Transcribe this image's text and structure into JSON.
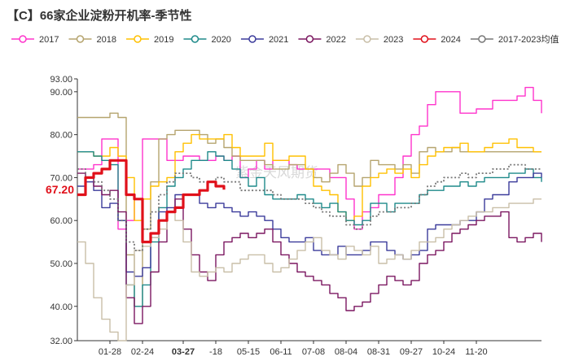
{
  "chart_data": {
    "type": "line",
    "title": "【C】66家企业淀粉开机率-季节性",
    "watermark": "紫金天风期货",
    "ylim": [
      32,
      93
    ],
    "y_ticks": [
      32.0,
      40.0,
      50.0,
      60.0,
      70.0,
      80.0,
      90.0,
      93.0
    ],
    "y_tick_labels": [
      "32.00",
      "40.00",
      "50.00",
      "60.00",
      "70.00",
      "80.00",
      "90.00",
      "93.00"
    ],
    "x_tick_labels": [
      "01-28",
      "02-24",
      "03-27",
      "-18",
      "05-15",
      "06-11",
      "07-08",
      "08-04",
      "08-31",
      "09-27",
      "10-24",
      "11-20"
    ],
    "x_tick_highlight": "03-27",
    "x_tick_positions": [
      4,
      8,
      13,
      17,
      21,
      25,
      29,
      33,
      37,
      41,
      45,
      49
    ],
    "x_max": 57,
    "last_value_label": "67.20",
    "last_value": 67.2,
    "legend_position": "top",
    "grid": false,
    "series": [
      {
        "name": "2017",
        "color": "#ff33cc",
        "width": 1.4,
        "dash": "",
        "values": [
          72,
          72,
          73,
          79,
          79,
          58,
          60,
          65,
          79,
          79,
          79,
          74,
          74,
          75,
          75,
          74,
          74,
          75,
          74,
          75,
          70,
          72,
          74,
          72,
          74,
          74,
          73,
          72,
          72,
          72,
          72,
          70,
          70,
          65,
          58,
          62,
          63,
          66,
          66,
          70,
          75,
          80,
          82,
          87,
          90,
          90,
          90,
          85,
          85,
          86,
          86,
          88,
          88,
          88,
          89,
          91,
          88,
          85
        ]
      },
      {
        "name": "2018",
        "color": "#b5a46e",
        "width": 1.4,
        "dash": "",
        "values": [
          84,
          84,
          84,
          84,
          85,
          84,
          52,
          40,
          58,
          69,
          79,
          80,
          81,
          81,
          81,
          80,
          78,
          79,
          77,
          75,
          74,
          74,
          74,
          73,
          72,
          72,
          73,
          73,
          72,
          70,
          69,
          71,
          73,
          71,
          68,
          70,
          74,
          73,
          73,
          72,
          73,
          71,
          76,
          77,
          76,
          76,
          77,
          76,
          76,
          76,
          76,
          76,
          76,
          76,
          76,
          76,
          76,
          76
        ]
      },
      {
        "name": "2019",
        "color": "#ffc000",
        "width": 1.4,
        "dash": "",
        "values": [
          76,
          76,
          75,
          75,
          77,
          75,
          70,
          60,
          65,
          68,
          69,
          70,
          76,
          78,
          80,
          79,
          79,
          79,
          80,
          77,
          75,
          75,
          75,
          78,
          74,
          74,
          75,
          75,
          72,
          68,
          67,
          66,
          62,
          60,
          61,
          68,
          70,
          71,
          72,
          71,
          72,
          70,
          73,
          75,
          76,
          77,
          77,
          78,
          76,
          76,
          77,
          78,
          78,
          79,
          77,
          77,
          76,
          76
        ]
      },
      {
        "name": "2020",
        "color": "#1e8a8a",
        "width": 1.4,
        "dash": "",
        "values": [
          76,
          76,
          75,
          74,
          73,
          60,
          45,
          40,
          45,
          55,
          63,
          68,
          70,
          72,
          74,
          74,
          76,
          75,
          74,
          72,
          70,
          68,
          70,
          66,
          65,
          65,
          65,
          66,
          65,
          64,
          63,
          64,
          62,
          60,
          59,
          60,
          64,
          64,
          62,
          64,
          64,
          64,
          66,
          67,
          67,
          68,
          68,
          69,
          68,
          69,
          70,
          70,
          70,
          71,
          71,
          72,
          70,
          69
        ]
      },
      {
        "name": "2021",
        "color": "#3b3b9b",
        "width": 1.4,
        "dash": "",
        "values": [
          68,
          69,
          67,
          63,
          64,
          60,
          48,
          47,
          49,
          56,
          62,
          63,
          66,
          66,
          66,
          64,
          63,
          64,
          63,
          62,
          61,
          62,
          61,
          60,
          58,
          56,
          55,
          55,
          56,
          53,
          52,
          52,
          54,
          52,
          52,
          53,
          55,
          55,
          53,
          52,
          51,
          52,
          53,
          58,
          59,
          59,
          59,
          60,
          60,
          62,
          65,
          66,
          66,
          69,
          70,
          70,
          71,
          70
        ]
      },
      {
        "name": "2022",
        "color": "#7b1760",
        "width": 1.4,
        "dash": "",
        "values": [
          71,
          70,
          68,
          66,
          67,
          62,
          42,
          36,
          40,
          48,
          55,
          62,
          65,
          58,
          52,
          48,
          46,
          52,
          55,
          56,
          57,
          56,
          57,
          58,
          55,
          52,
          50,
          48,
          47,
          46,
          45,
          43,
          42,
          39,
          40,
          41,
          43,
          45,
          47,
          46,
          45,
          46,
          50,
          52,
          53,
          55,
          57,
          58,
          59,
          60,
          61,
          61,
          62,
          56,
          55,
          56,
          57,
          55
        ]
      },
      {
        "name": "2023",
        "color": "#c9bfa8",
        "width": 1.4,
        "dash": "",
        "values": [
          55,
          50,
          42,
          37,
          34,
          32,
          45,
          53,
          54,
          56,
          58,
          62,
          60,
          55,
          48,
          47,
          48,
          49,
          48,
          50,
          51,
          52,
          52,
          50,
          48,
          49,
          51,
          53,
          55,
          56,
          53,
          52,
          51,
          54,
          53,
          52,
          54,
          50,
          51,
          52,
          51,
          53,
          55,
          55,
          56,
          58,
          59,
          60,
          61,
          62,
          62,
          63,
          63,
          64,
          64,
          64,
          65,
          65
        ]
      },
      {
        "name": "2024",
        "color": "#e0101a",
        "width": 3.2,
        "dash": "",
        "values": [
          66,
          70,
          71,
          72,
          74,
          74,
          66,
          65,
          55,
          57,
          60,
          62,
          63,
          66,
          66,
          67,
          69,
          68,
          67.2
        ]
      },
      {
        "name": "2017-2023均值",
        "color": "#777777",
        "width": 1.8,
        "dash": "2,2.5",
        "values": [
          72,
          70,
          69,
          67,
          65,
          60,
          55,
          53,
          58,
          62,
          66,
          69,
          71,
          71,
          70,
          69,
          69,
          70,
          69,
          69,
          67,
          67,
          67,
          67,
          66,
          65,
          65,
          65,
          64,
          63,
          62,
          61,
          61,
          59,
          58,
          59,
          61,
          62,
          62,
          63,
          63,
          64,
          66,
          68,
          69,
          70,
          70,
          71,
          70,
          71,
          71,
          72,
          72,
          73,
          73,
          72,
          72,
          72
        ]
      }
    ]
  }
}
